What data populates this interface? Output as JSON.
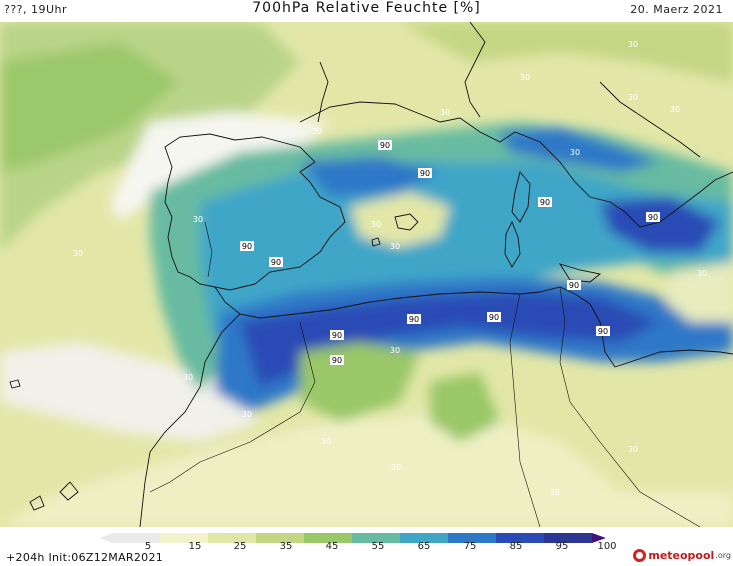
{
  "header": {
    "left": "???, 19Uhr",
    "title": "700hPa Relative Feuchte [%]",
    "right": "20. Maerz 2021"
  },
  "legend": {
    "ticks": [
      "5",
      "15",
      "25",
      "35",
      "45",
      "55",
      "65",
      "75",
      "85",
      "95",
      "100"
    ],
    "colors": [
      "#eaeaea",
      "#f2f2cd",
      "#e0e6a6",
      "#c4d684",
      "#9ac767",
      "#67bba1",
      "#3fa6c8",
      "#2f78c7",
      "#2a4bb5",
      "#2b3592",
      "#3e137a"
    ]
  },
  "footer": {
    "init": "+204h  Init:06Z12MAR2021",
    "brand_name": "meteopool",
    "brand_suffix": ".org"
  },
  "contour_labels": [
    "30",
    "30",
    "30",
    "30",
    "30",
    "30",
    "30",
    "30",
    "90",
    "90",
    "90",
    "90",
    "90",
    "90",
    "90",
    "90",
    "90",
    "90",
    "90",
    "90",
    "30",
    "30",
    "30",
    "30",
    "30",
    "30",
    "30",
    "30",
    "30",
    "30",
    "30"
  ]
}
